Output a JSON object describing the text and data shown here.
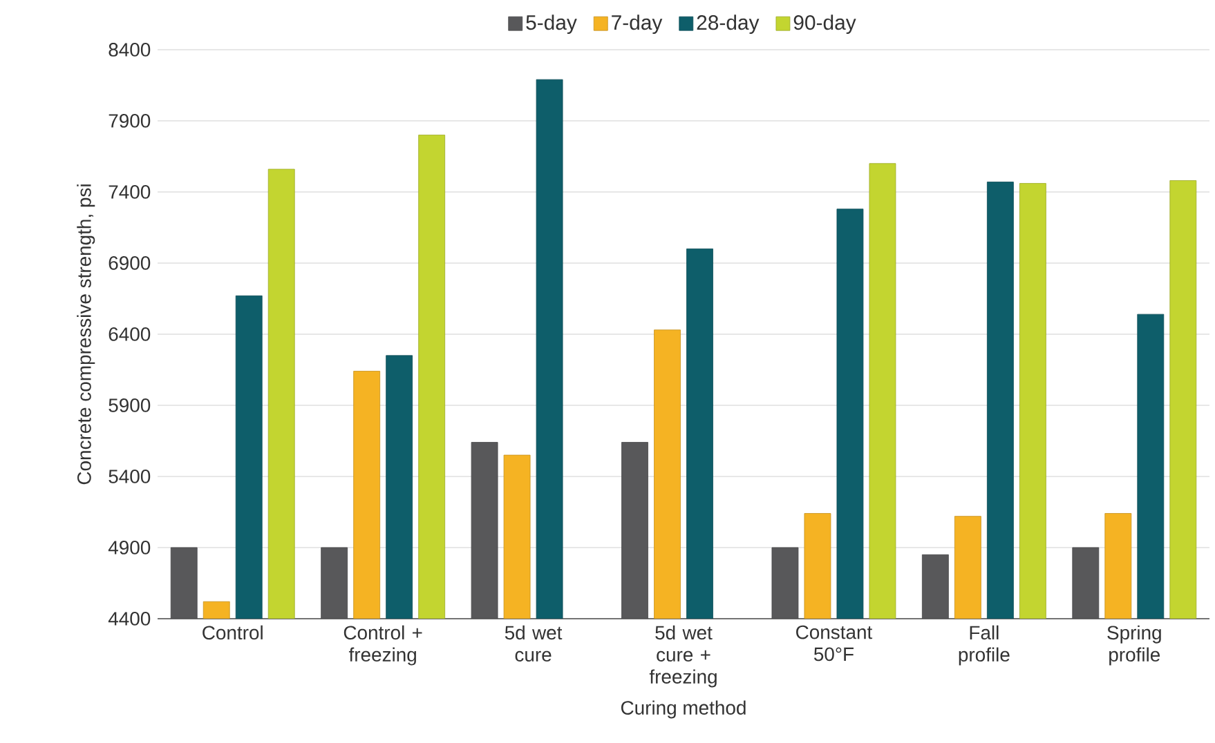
{
  "chart_data": {
    "type": "bar",
    "xlabel": "Curing method",
    "ylabel": "Concrete compressive strength, psi",
    "categories": [
      "Control",
      "Control + freezing",
      "5d wet cure",
      "5d wet cure + freezing",
      "Constant 50°F",
      "Fall profile",
      "Spring profile"
    ],
    "series": [
      {
        "name": "5-day",
        "color": "#58585a",
        "values": [
          4900,
          4900,
          5640,
          5640,
          4900,
          4850,
          4900
        ]
      },
      {
        "name": "7-day",
        "color": "#f5b323",
        "values": [
          4520,
          6140,
          5550,
          6430,
          5140,
          5120,
          5140
        ]
      },
      {
        "name": "28-day",
        "color": "#0e5e6a",
        "values": [
          6670,
          6250,
          8190,
          7000,
          7280,
          7470,
          6540
        ]
      },
      {
        "name": "90-day",
        "color": "#c3d530",
        "values": [
          7560,
          7800,
          null,
          null,
          7600,
          7460,
          7480
        ]
      }
    ],
    "ylim": [
      4400,
      8400
    ],
    "yticks": [
      4400,
      4900,
      5400,
      5900,
      6400,
      6900,
      7400,
      7900,
      8400
    ],
    "grid": "y",
    "legend": "top"
  }
}
